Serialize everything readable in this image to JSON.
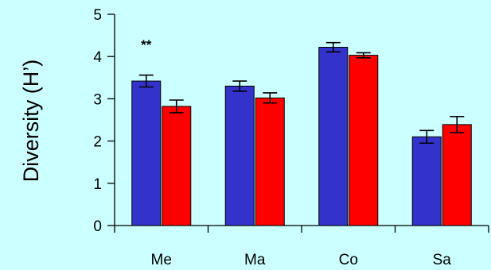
{
  "chart_data": {
    "type": "bar",
    "ylabel": "Diversity (H’)",
    "xlabel": "",
    "ylim": [
      0,
      5
    ],
    "yticks": [
      0,
      1,
      2,
      3,
      4,
      5
    ],
    "categories": [
      "Me",
      "Ma",
      "Co",
      "Sa"
    ],
    "series": [
      {
        "color": "#3333cc",
        "values": [
          3.42,
          3.3,
          4.22,
          2.1
        ],
        "errors": [
          0.14,
          0.12,
          0.11,
          0.15
        ]
      },
      {
        "color": "#ff0000",
        "values": [
          2.82,
          3.02,
          4.03,
          2.39
        ],
        "errors": [
          0.15,
          0.12,
          0.06,
          0.19
        ]
      }
    ],
    "annotations": [
      {
        "category": "Me",
        "text": "**"
      }
    ],
    "grid": false,
    "legend": "none"
  }
}
